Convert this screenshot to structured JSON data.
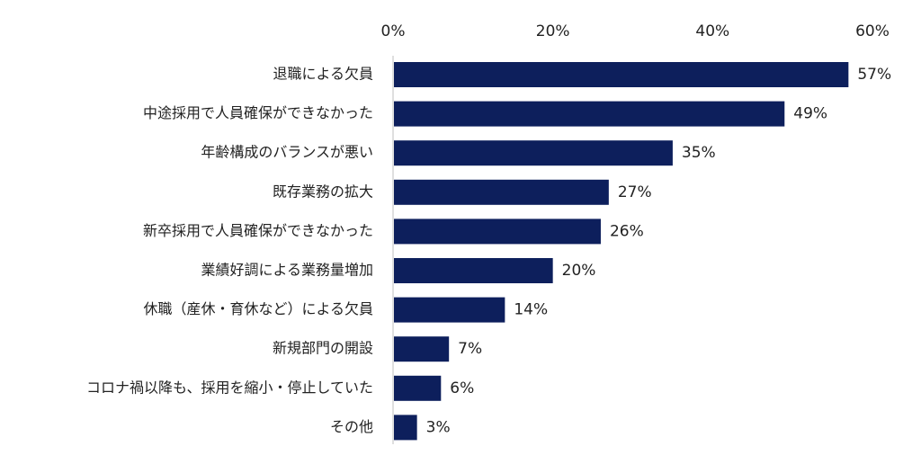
{
  "chart_data": {
    "type": "bar",
    "orientation": "horizontal",
    "categories": [
      "退職による欠員",
      "中途採用で人員確保ができなかった",
      "年齢構成のバランスが悪い",
      "既存業務の拡大",
      "新卒採用で人員確保ができなかった",
      "業績好調による業務量増加",
      "休職（産休・育休など）による欠員",
      "新規部門の開設",
      "コロナ禍以降も、採用を縮小・停止していた",
      "その他"
    ],
    "values": [
      57,
      49,
      35,
      27,
      26,
      20,
      14,
      7,
      6,
      3
    ],
    "data_labels": [
      "57%",
      "49%",
      "35%",
      "27%",
      "26%",
      "20%",
      "14%",
      "7%",
      "6%",
      "3%"
    ],
    "x_ticks": [
      0,
      20,
      40,
      60
    ],
    "x_tick_labels": [
      "0%",
      "20%",
      "40%",
      "60%"
    ],
    "xlim": [
      0,
      60
    ],
    "x_axis_position": "top",
    "grid": false,
    "legend": "none",
    "title": "",
    "xlabel": "",
    "ylabel": "",
    "colors": {
      "bar": "#0d1f5c",
      "axis": "#bfbfbf",
      "text": "#222222"
    }
  }
}
